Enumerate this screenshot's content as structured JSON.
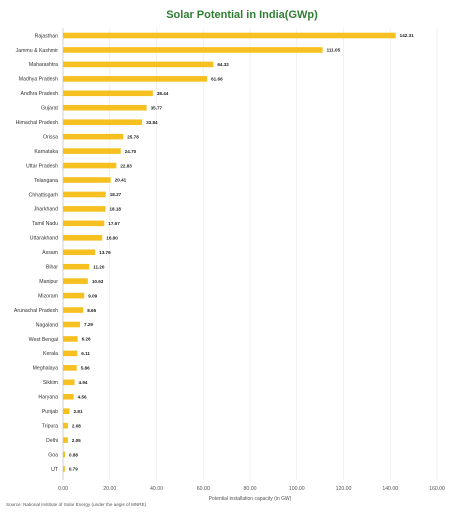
{
  "chart_data": {
    "type": "bar",
    "orientation": "horizontal",
    "title": "Solar Potential in India(GWp)",
    "xlabel": "Potential installation capacity (in GW)",
    "ylabel": "",
    "xlim": [
      0,
      160
    ],
    "x_ticks": [
      "0.00",
      "20.00",
      "40.00",
      "60.00",
      "80.00",
      "100.00",
      "120.00",
      "140.00",
      "160.00"
    ],
    "grid": true,
    "bar_color": "#f5c020",
    "categories": [
      "Rajasthan",
      "Jammu & Kashmir",
      "Maharashtra",
      "Madhya Pradesh",
      "Andhra Pradesh",
      "Gujarat",
      "Himachal Pradesh",
      "Orissa",
      "Karnataka",
      "Uttar Pradesh",
      "Telangana",
      "Chhattisgarh",
      "Jharkhand",
      "Tamil Nadu",
      "Uttarakhand",
      "Assam",
      "Bihar",
      "Manipur",
      "Mizoram",
      "Arunachal Pradesh",
      "Nagaland",
      "West Bengal",
      "Kerala",
      "Meghalaya",
      "Sikkim",
      "Haryana",
      "Punjab",
      "Tripura",
      "Delhi",
      "Goa",
      "UT"
    ],
    "values": [
      142.31,
      111.05,
      64.32,
      61.66,
      38.44,
      35.77,
      33.84,
      25.78,
      24.7,
      22.83,
      20.41,
      18.27,
      18.18,
      17.67,
      16.8,
      13.76,
      11.2,
      10.63,
      9.09,
      8.65,
      7.29,
      6.26,
      6.11,
      5.86,
      4.94,
      4.56,
      2.81,
      2.08,
      2.05,
      0.88,
      0.79
    ],
    "value_labels": [
      "142.31",
      "111.05",
      "64.32",
      "61.66",
      "38.44",
      "35.77",
      "33.84",
      "25.78",
      "24.70",
      "22.83",
      "20.41",
      "18.27",
      "18.18",
      "17.67",
      "16.80",
      "13.76",
      "11.20",
      "10.63",
      "9.09",
      "8.65",
      "7.29",
      "6.26",
      "6.11",
      "5.86",
      "4.94",
      "4.56",
      "2.81",
      "2.08",
      "2.05",
      "0.88",
      "0.79"
    ],
    "source": "Source: National Institute of Solar Energy (under the aegis of MNRE)"
  }
}
